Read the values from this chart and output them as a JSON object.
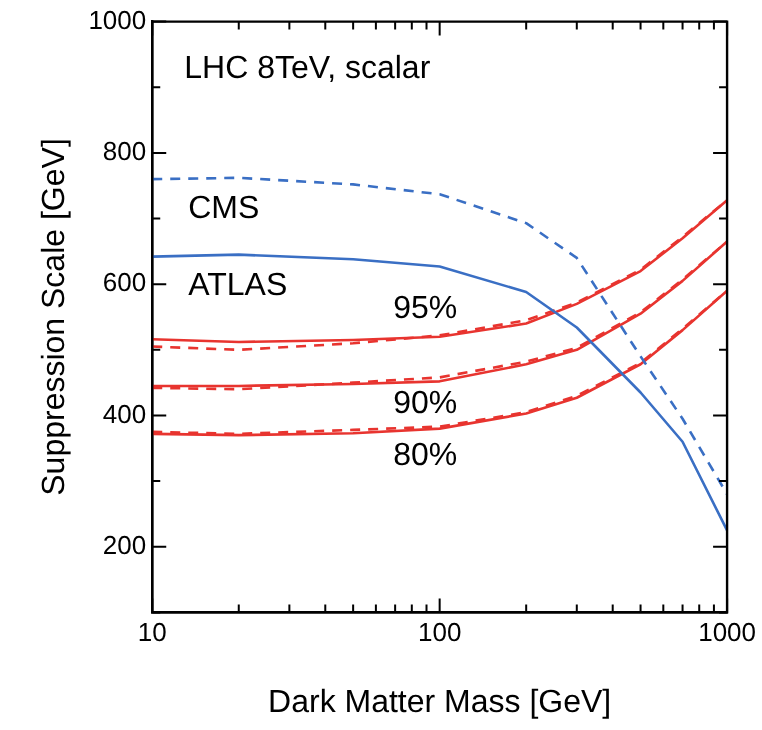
{
  "chart_data": {
    "type": "line",
    "xlabel": "Dark Matter Mass [GeV]",
    "ylabel": "Suppression Scale [GeV]",
    "log": "x",
    "grid": false,
    "legend": false,
    "marker": "none",
    "xlim": [
      10,
      1000
    ],
    "ylim": [
      100,
      1000
    ],
    "xticks": [
      10,
      {
        "value": 20,
        "label": null
      },
      {
        "value": 30,
        "label": null
      },
      {
        "value": 40,
        "label": null
      },
      {
        "value": 50,
        "label": null
      },
      {
        "value": 60,
        "label": null
      },
      {
        "value": 70,
        "label": null
      },
      {
        "value": 80,
        "label": null
      },
      {
        "value": 90,
        "label": null
      },
      100,
      {
        "value": 200,
        "label": null
      },
      {
        "value": 300,
        "label": null
      },
      {
        "value": 400,
        "label": null
      },
      {
        "value": 500,
        "label": null
      },
      {
        "value": 600,
        "label": null
      },
      {
        "value": 700,
        "label": null
      },
      {
        "value": 800,
        "label": null
      },
      {
        "value": 900,
        "label": null
      },
      1000
    ],
    "yticks": [
      {
        "value": 100,
        "label": null
      },
      200,
      {
        "value": 300,
        "label": null
      },
      400,
      {
        "value": 500,
        "label": null
      },
      600,
      {
        "value": 700,
        "label": null
      },
      800,
      {
        "value": 900,
        "label": null
      },
      1000
    ],
    "x": [
      10,
      20,
      50,
      100,
      200,
      300,
      500,
      700,
      1000
    ],
    "series": [
      {
        "name": "CMS",
        "color": "#3a6fc4",
        "line_style": "dashed",
        "values": [
          760,
          762,
          752,
          737,
          693,
          640,
          490,
          395,
          280
        ]
      },
      {
        "name": "ATLAS",
        "color": "#3a6fc4",
        "line_style": "solid",
        "values": [
          642,
          645,
          638,
          627,
          588,
          534,
          435,
          360,
          225
        ]
      },
      {
        "color": "#e8342f",
        "line_style": "solid",
        "values": [
          516,
          512,
          515,
          520,
          540,
          570,
          620,
          670,
          728
        ]
      },
      {
        "color": "#e8342f",
        "line_style": "dashed",
        "values": [
          505,
          500,
          510,
          522,
          545,
          572,
          622,
          672,
          728
        ]
      },
      {
        "color": "#e8342f",
        "line_style": "solid",
        "values": [
          445,
          445,
          448,
          452,
          478,
          500,
          555,
          605,
          665
        ]
      },
      {
        "color": "#e8342f",
        "line_style": "dashed",
        "values": [
          442,
          440,
          450,
          458,
          482,
          503,
          557,
          607,
          665
        ]
      },
      {
        "color": "#e8342f",
        "line_style": "solid",
        "values": [
          372,
          370,
          373,
          380,
          403,
          427,
          478,
          530,
          590
        ]
      },
      {
        "color": "#e8342f",
        "line_style": "dashed",
        "values": [
          375,
          372,
          378,
          383,
          405,
          430,
          480,
          532,
          590
        ]
      }
    ],
    "annotations": [
      "LHC 8TeV, scalar",
      "95%",
      "90%",
      "80%"
    ]
  }
}
